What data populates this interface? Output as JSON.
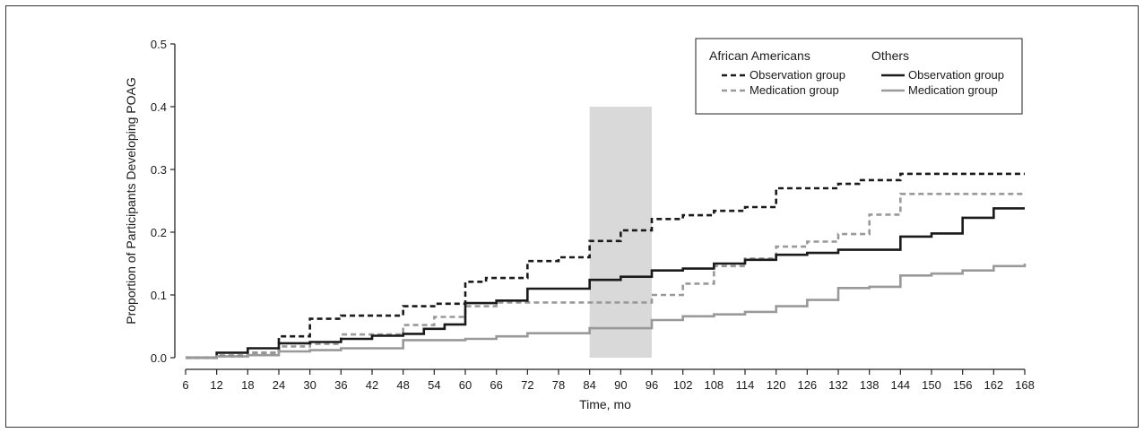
{
  "chart_data": {
    "type": "line",
    "xlabel": "Time, mo",
    "ylabel": "Proportion of Participants Developing POAG",
    "xlim": [
      6,
      168
    ],
    "ylim": [
      0,
      0.5
    ],
    "x_ticks": [
      "6",
      "12",
      "18",
      "24",
      "30",
      "36",
      "42",
      "48",
      "54",
      "60",
      "66",
      "72",
      "78",
      "84",
      "90",
      "96",
      "102",
      "108",
      "114",
      "120",
      "126",
      "132",
      "138",
      "144",
      "150",
      "156",
      "162",
      "168"
    ],
    "y_ticks": [
      "0.0",
      "0.1",
      "0.2",
      "0.3",
      "0.4",
      "0.5"
    ],
    "shaded_region": {
      "x_start": 84,
      "x_end": 96,
      "y_start": 0,
      "y_end": 0.4,
      "color": "#d9d9d9"
    },
    "legend": {
      "placement": "top-right",
      "groups": [
        {
          "header": "African Americans",
          "entries": [
            0,
            1
          ]
        },
        {
          "header": "Others",
          "entries": [
            2,
            3
          ]
        }
      ]
    },
    "series": [
      {
        "name": "Observation group",
        "group": "African Americans",
        "style": "dashed",
        "color": "#1a1a1a",
        "points": [
          [
            6,
            0
          ],
          [
            12,
            0.003
          ],
          [
            18,
            0.008
          ],
          [
            24,
            0.034
          ],
          [
            30,
            0.062
          ],
          [
            36,
            0.067
          ],
          [
            42,
            0.067
          ],
          [
            48,
            0.082
          ],
          [
            54,
            0.086
          ],
          [
            60,
            0.121
          ],
          [
            64,
            0.127
          ],
          [
            72,
            0.154
          ],
          [
            78,
            0.16
          ],
          [
            84,
            0.186
          ],
          [
            90,
            0.203
          ],
          [
            96,
            0.221
          ],
          [
            102,
            0.227
          ],
          [
            108,
            0.234
          ],
          [
            114,
            0.24
          ],
          [
            120,
            0.27
          ],
          [
            132,
            0.277
          ],
          [
            136,
            0.283
          ],
          [
            144,
            0.293
          ],
          [
            168,
            0.293
          ]
        ]
      },
      {
        "name": "Medication group",
        "group": "African Americans",
        "style": "dashed",
        "color": "#999999",
        "points": [
          [
            6,
            0
          ],
          [
            12,
            0.002
          ],
          [
            18,
            0.008
          ],
          [
            24,
            0.018
          ],
          [
            30,
            0.022
          ],
          [
            36,
            0.037
          ],
          [
            42,
            0.037
          ],
          [
            48,
            0.052
          ],
          [
            54,
            0.065
          ],
          [
            60,
            0.082
          ],
          [
            66,
            0.088
          ],
          [
            96,
            0.1
          ],
          [
            102,
            0.118
          ],
          [
            108,
            0.146
          ],
          [
            114,
            0.158
          ],
          [
            120,
            0.177
          ],
          [
            126,
            0.185
          ],
          [
            132,
            0.197
          ],
          [
            138,
            0.228
          ],
          [
            144,
            0.261
          ],
          [
            168,
            0.261
          ]
        ]
      },
      {
        "name": "Observation group",
        "group": "Others",
        "style": "solid",
        "color": "#1a1a1a",
        "points": [
          [
            6,
            0
          ],
          [
            12,
            0.008
          ],
          [
            18,
            0.015
          ],
          [
            24,
            0.023
          ],
          [
            30,
            0.025
          ],
          [
            36,
            0.03
          ],
          [
            42,
            0.035
          ],
          [
            48,
            0.038
          ],
          [
            52,
            0.046
          ],
          [
            56,
            0.053
          ],
          [
            60,
            0.087
          ],
          [
            66,
            0.091
          ],
          [
            72,
            0.11
          ],
          [
            84,
            0.124
          ],
          [
            90,
            0.129
          ],
          [
            96,
            0.139
          ],
          [
            102,
            0.142
          ],
          [
            108,
            0.15
          ],
          [
            114,
            0.156
          ],
          [
            120,
            0.164
          ],
          [
            126,
            0.167
          ],
          [
            132,
            0.172
          ],
          [
            144,
            0.193
          ],
          [
            150,
            0.198
          ],
          [
            156,
            0.223
          ],
          [
            162,
            0.238
          ],
          [
            168,
            0.238
          ]
        ]
      },
      {
        "name": "Medication group",
        "group": "Others",
        "style": "solid",
        "color": "#999999",
        "points": [
          [
            6,
            0
          ],
          [
            12,
            0.002
          ],
          [
            18,
            0.004
          ],
          [
            24,
            0.01
          ],
          [
            30,
            0.012
          ],
          [
            36,
            0.015
          ],
          [
            48,
            0.028
          ],
          [
            60,
            0.03
          ],
          [
            66,
            0.034
          ],
          [
            72,
            0.039
          ],
          [
            84,
            0.047
          ],
          [
            96,
            0.06
          ],
          [
            102,
            0.066
          ],
          [
            108,
            0.069
          ],
          [
            114,
            0.073
          ],
          [
            120,
            0.082
          ],
          [
            126,
            0.092
          ],
          [
            132,
            0.111
          ],
          [
            138,
            0.113
          ],
          [
            144,
            0.131
          ],
          [
            150,
            0.134
          ],
          [
            156,
            0.139
          ],
          [
            162,
            0.146
          ],
          [
            168,
            0.15
          ]
        ]
      }
    ]
  }
}
